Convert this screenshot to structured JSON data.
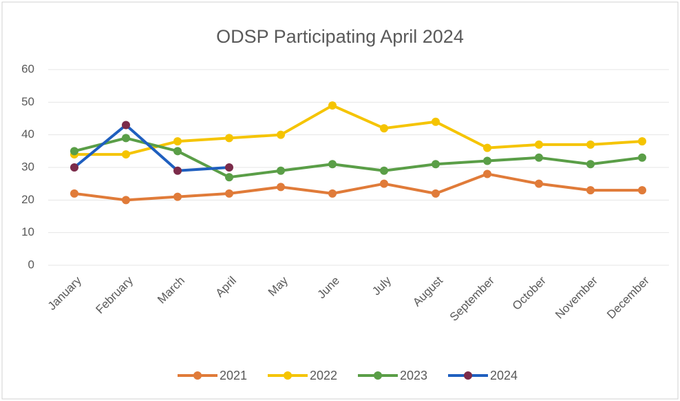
{
  "chart_data": {
    "type": "line",
    "title": "ODSP Participating April 2024",
    "categories": [
      "January",
      "February",
      "March",
      "April",
      "May",
      "June",
      "July",
      "August",
      "September",
      "October",
      "November",
      "December"
    ],
    "series": [
      {
        "name": "2021",
        "color": "#e07b39",
        "values": [
          22,
          20,
          21,
          22,
          24,
          22,
          25,
          22,
          28,
          25,
          23,
          23
        ]
      },
      {
        "name": "2022",
        "color": "#f5c400",
        "values": [
          34,
          34,
          38,
          39,
          40,
          49,
          42,
          44,
          36,
          37,
          37,
          38
        ]
      },
      {
        "name": "2023",
        "color": "#5a9e47",
        "values": [
          35,
          39,
          35,
          27,
          29,
          31,
          29,
          31,
          32,
          33,
          31,
          33
        ]
      },
      {
        "name": "2024",
        "color": "#1f5fbf",
        "marker_color": "#7b2b4a",
        "values": [
          30,
          43,
          29,
          30,
          null,
          null,
          null,
          null,
          null,
          null,
          null,
          null
        ]
      }
    ],
    "ylim": [
      0,
      60
    ],
    "yticks": [
      0,
      10,
      20,
      30,
      40,
      50,
      60
    ],
    "grid": true
  }
}
